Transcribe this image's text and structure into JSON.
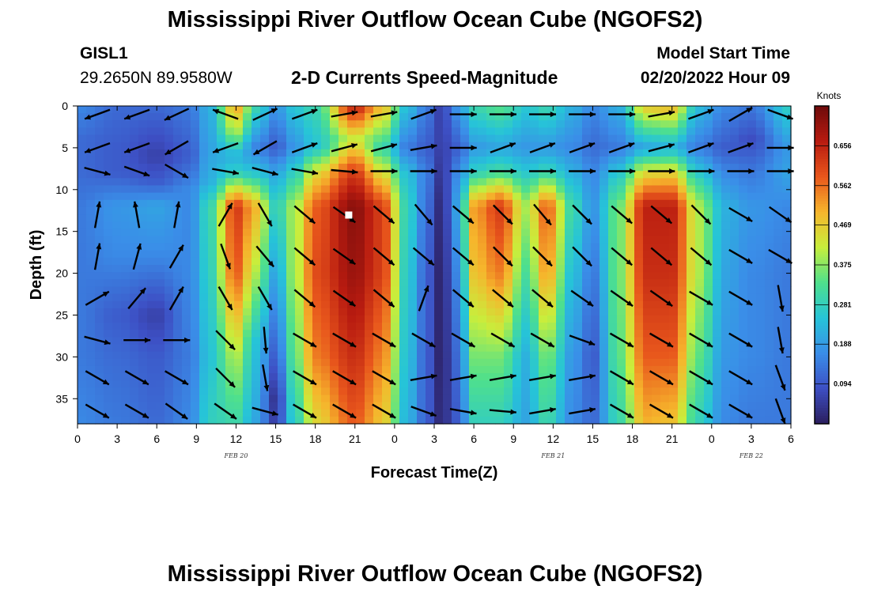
{
  "header": {
    "title": "Mississippi River Outflow Ocean Cube (NGOFS2)",
    "station": "GISL1",
    "coords": "29.2650N  89.9580W",
    "subtitle": "2-D Currents Speed-Magnitude",
    "model_start_label": "Model Start Time",
    "model_start_value": "02/20/2022 Hour 09"
  },
  "footer": {
    "title": "Mississippi River Outflow Ocean Cube (NGOFS2)"
  },
  "chart_data": {
    "type": "heatmap",
    "xlabel": "Forecast Time(Z)",
    "ylabel": "Depth (ft)",
    "x_ticks": [
      "0",
      "3",
      "6",
      "9",
      "12",
      "15",
      "18",
      "21",
      "0",
      "3",
      "6",
      "9",
      "12",
      "15",
      "18",
      "21",
      "0",
      "3",
      "6"
    ],
    "date_labels": [
      {
        "text": "FEB 20",
        "hour_index": 12
      },
      {
        "text": "FEB 21",
        "hour_index": 36
      },
      {
        "text": "FEB 22",
        "hour_index": 51
      }
    ],
    "x_range_hours": [
      0,
      54
    ],
    "y_ticks": [
      0,
      5,
      10,
      15,
      20,
      25,
      30,
      35
    ],
    "y_range": [
      0,
      38
    ],
    "colorbar": {
      "unit": "Knots",
      "ticks": [
        0.094,
        0.188,
        0.281,
        0.375,
        0.469,
        0.562,
        0.656
      ],
      "min": 0.0,
      "max": 0.75
    },
    "colors": [
      "#2b1e5e",
      "#3d4fc4",
      "#3a8ee8",
      "#26c4d8",
      "#4fe08c",
      "#c8ee3c",
      "#f6b52c",
      "#e8561c",
      "#b81b10",
      "#6e0b0b"
    ],
    "columns": [
      {
        "hour": 0,
        "profile": [
          [
            0,
            0.16
          ],
          [
            4,
            0.12
          ],
          [
            8,
            0.12
          ],
          [
            12,
            0.14
          ],
          [
            20,
            0.14
          ],
          [
            30,
            0.14
          ],
          [
            38,
            0.16
          ]
        ]
      },
      {
        "hour": 3,
        "profile": [
          [
            0,
            0.12
          ],
          [
            5,
            0.1
          ],
          [
            8,
            0.1
          ],
          [
            12,
            0.18
          ],
          [
            18,
            0.16
          ],
          [
            25,
            0.1
          ],
          [
            30,
            0.12
          ],
          [
            38,
            0.14
          ]
        ]
      },
      {
        "hour": 6,
        "profile": [
          [
            0,
            0.12
          ],
          [
            6,
            0.06
          ],
          [
            9,
            0.1
          ],
          [
            12,
            0.2
          ],
          [
            18,
            0.16
          ],
          [
            25,
            0.06
          ],
          [
            30,
            0.1
          ],
          [
            38,
            0.12
          ]
        ]
      },
      {
        "hour": 8.5,
        "profile": [
          [
            0,
            0.14
          ],
          [
            6,
            0.1
          ],
          [
            10,
            0.16
          ],
          [
            20,
            0.16
          ],
          [
            30,
            0.14
          ],
          [
            38,
            0.16
          ]
        ]
      },
      {
        "hour": 10,
        "profile": [
          [
            0,
            0.22
          ],
          [
            5,
            0.2
          ],
          [
            9,
            0.22
          ],
          [
            12,
            0.3
          ],
          [
            20,
            0.28
          ],
          [
            30,
            0.25
          ],
          [
            38,
            0.28
          ]
        ]
      },
      {
        "hour": 12,
        "profile": [
          [
            0,
            0.52
          ],
          [
            3,
            0.4
          ],
          [
            6,
            0.22
          ],
          [
            8,
            0.28
          ],
          [
            12,
            0.62
          ],
          [
            20,
            0.58
          ],
          [
            30,
            0.4
          ],
          [
            38,
            0.3
          ]
        ]
      },
      {
        "hour": 13.5,
        "profile": [
          [
            0,
            0.3
          ],
          [
            5,
            0.15
          ],
          [
            8,
            0.25
          ],
          [
            12,
            0.5
          ],
          [
            20,
            0.4
          ],
          [
            28,
            0.25
          ],
          [
            38,
            0.2
          ]
        ]
      },
      {
        "hour": 15,
        "profile": [
          [
            0,
            0.18
          ],
          [
            5,
            0.1
          ],
          [
            8,
            0.2
          ],
          [
            12,
            0.28
          ],
          [
            20,
            0.2
          ],
          [
            30,
            0.1
          ],
          [
            35,
            0.04
          ],
          [
            38,
            0.06
          ]
        ]
      },
      {
        "hour": 16.5,
        "profile": [
          [
            0,
            0.26
          ],
          [
            5,
            0.18
          ],
          [
            8,
            0.28
          ],
          [
            12,
            0.4
          ],
          [
            20,
            0.4
          ],
          [
            30,
            0.35
          ],
          [
            38,
            0.28
          ]
        ]
      },
      {
        "hour": 18,
        "profile": [
          [
            0,
            0.3
          ],
          [
            5,
            0.25
          ],
          [
            8,
            0.45
          ],
          [
            12,
            0.58
          ],
          [
            20,
            0.6
          ],
          [
            30,
            0.55
          ],
          [
            38,
            0.45
          ]
        ]
      },
      {
        "hour": 21,
        "profile": [
          [
            0,
            0.66
          ],
          [
            4,
            0.42
          ],
          [
            8,
            0.62
          ],
          [
            12,
            0.72
          ],
          [
            20,
            0.7
          ],
          [
            30,
            0.64
          ],
          [
            38,
            0.58
          ]
        ]
      },
      {
        "hour": 23,
        "profile": [
          [
            0,
            0.5
          ],
          [
            5,
            0.3
          ],
          [
            8,
            0.45
          ],
          [
            12,
            0.62
          ],
          [
            20,
            0.62
          ],
          [
            30,
            0.55
          ],
          [
            38,
            0.48
          ]
        ]
      },
      {
        "hour": 25,
        "profile": [
          [
            0,
            0.24
          ],
          [
            5,
            0.14
          ],
          [
            8,
            0.24
          ],
          [
            12,
            0.28
          ],
          [
            20,
            0.26
          ],
          [
            30,
            0.24
          ],
          [
            38,
            0.22
          ]
        ]
      },
      {
        "hour": 26.5,
        "profile": [
          [
            0,
            0.14
          ],
          [
            5,
            0.1
          ],
          [
            8,
            0.14
          ],
          [
            12,
            0.12
          ],
          [
            20,
            0.1
          ],
          [
            30,
            0.1
          ],
          [
            38,
            0.1
          ]
        ]
      },
      {
        "hour": 27.5,
        "profile": [
          [
            0,
            0.06
          ],
          [
            5,
            0.06
          ],
          [
            8,
            0.04
          ],
          [
            12,
            0.02
          ],
          [
            20,
            0.01
          ],
          [
            30,
            0.01
          ],
          [
            38,
            0.02
          ]
        ]
      },
      {
        "hour": 28.8,
        "profile": [
          [
            0,
            0.18
          ],
          [
            5,
            0.1
          ],
          [
            8,
            0.16
          ],
          [
            12,
            0.2
          ],
          [
            20,
            0.16
          ],
          [
            30,
            0.12
          ],
          [
            38,
            0.1
          ]
        ]
      },
      {
        "hour": 30,
        "profile": [
          [
            0,
            0.3
          ],
          [
            5,
            0.18
          ],
          [
            8,
            0.28
          ],
          [
            12,
            0.52
          ],
          [
            20,
            0.48
          ],
          [
            30,
            0.36
          ],
          [
            38,
            0.28
          ]
        ]
      },
      {
        "hour": 32,
        "profile": [
          [
            0,
            0.34
          ],
          [
            5,
            0.2
          ],
          [
            8,
            0.32
          ],
          [
            12,
            0.62
          ],
          [
            20,
            0.55
          ],
          [
            30,
            0.36
          ],
          [
            38,
            0.28
          ]
        ]
      },
      {
        "hour": 34,
        "profile": [
          [
            0,
            0.26
          ],
          [
            5,
            0.18
          ],
          [
            8,
            0.26
          ],
          [
            12,
            0.4
          ],
          [
            20,
            0.32
          ],
          [
            30,
            0.22
          ],
          [
            38,
            0.2
          ]
        ]
      },
      {
        "hour": 35.5,
        "profile": [
          [
            0,
            0.3
          ],
          [
            5,
            0.18
          ],
          [
            8,
            0.3
          ],
          [
            12,
            0.58
          ],
          [
            20,
            0.52
          ],
          [
            30,
            0.36
          ],
          [
            38,
            0.3
          ]
        ]
      },
      {
        "hour": 37.5,
        "profile": [
          [
            0,
            0.22
          ],
          [
            5,
            0.16
          ],
          [
            8,
            0.22
          ],
          [
            12,
            0.3
          ],
          [
            20,
            0.24
          ],
          [
            30,
            0.18
          ],
          [
            38,
            0.16
          ]
        ]
      },
      {
        "hour": 39,
        "profile": [
          [
            0,
            0.16
          ],
          [
            5,
            0.12
          ],
          [
            8,
            0.16
          ],
          [
            12,
            0.18
          ],
          [
            20,
            0.14
          ],
          [
            30,
            0.1
          ],
          [
            38,
            0.12
          ]
        ]
      },
      {
        "hour": 41,
        "profile": [
          [
            0,
            0.22
          ],
          [
            5,
            0.14
          ],
          [
            8,
            0.26
          ],
          [
            12,
            0.36
          ],
          [
            20,
            0.36
          ],
          [
            30,
            0.34
          ],
          [
            38,
            0.3
          ]
        ]
      },
      {
        "hour": 43,
        "profile": [
          [
            0,
            0.48
          ],
          [
            5,
            0.2
          ],
          [
            8,
            0.45
          ],
          [
            12,
            0.66
          ],
          [
            20,
            0.64
          ],
          [
            30,
            0.58
          ],
          [
            38,
            0.5
          ]
        ]
      },
      {
        "hour": 45,
        "profile": [
          [
            0,
            0.5
          ],
          [
            5,
            0.22
          ],
          [
            8,
            0.46
          ],
          [
            12,
            0.66
          ],
          [
            20,
            0.64
          ],
          [
            30,
            0.58
          ],
          [
            38,
            0.48
          ]
        ]
      },
      {
        "hour": 47,
        "profile": [
          [
            0,
            0.24
          ],
          [
            5,
            0.14
          ],
          [
            8,
            0.26
          ],
          [
            12,
            0.4
          ],
          [
            20,
            0.4
          ],
          [
            30,
            0.34
          ],
          [
            38,
            0.28
          ]
        ]
      },
      {
        "hour": 49,
        "profile": [
          [
            0,
            0.16
          ],
          [
            5,
            0.1
          ],
          [
            8,
            0.16
          ],
          [
            12,
            0.22
          ],
          [
            20,
            0.2
          ],
          [
            30,
            0.18
          ],
          [
            38,
            0.16
          ]
        ]
      },
      {
        "hour": 51,
        "profile": [
          [
            0,
            0.14
          ],
          [
            4,
            0.08
          ],
          [
            8,
            0.14
          ],
          [
            12,
            0.18
          ],
          [
            20,
            0.16
          ],
          [
            30,
            0.16
          ],
          [
            38,
            0.14
          ]
        ]
      },
      {
        "hour": 54,
        "profile": [
          [
            0,
            0.28
          ],
          [
            5,
            0.18
          ],
          [
            8,
            0.2
          ],
          [
            12,
            0.16
          ],
          [
            20,
            0.14
          ],
          [
            30,
            0.14
          ],
          [
            38,
            0.14
          ]
        ]
      }
    ],
    "vectors": {
      "hours": [
        1.5,
        4.5,
        7.5,
        11.2,
        14.2,
        17.2,
        20.2,
        23.2,
        26.2,
        29.2,
        32.2,
        35.2,
        38.2,
        41.2,
        44.2,
        47.2,
        50.2,
        53.2
      ],
      "depths": [
        1,
        5,
        7.8,
        13,
        18,
        23,
        28,
        32.5,
        36.5
      ],
      "dir_deg_by_depth": [
        [
          200,
          200,
          205,
          160,
          25,
          20,
          10,
          10,
          20,
          0,
          0,
          0,
          0,
          0,
          10,
          20,
          30,
          -20
        ],
        [
          200,
          200,
          210,
          200,
          210,
          20,
          15,
          15,
          10,
          0,
          20,
          20,
          20,
          20,
          15,
          20,
          20,
          0
        ],
        [
          -15,
          -20,
          -30,
          -10,
          -15,
          -10,
          -5,
          0,
          0,
          0,
          0,
          0,
          0,
          0,
          0,
          0,
          0,
          0
        ],
        [
          80,
          100,
          80,
          60,
          -60,
          -40,
          -35,
          -40,
          -50,
          -40,
          -45,
          -50,
          -45,
          -40,
          -40,
          -45,
          -30,
          -35
        ],
        [
          80,
          75,
          60,
          -70,
          -50,
          -40,
          -35,
          -40,
          -40,
          -40,
          -45,
          -45,
          -45,
          -40,
          -40,
          -40,
          -30,
          -30
        ],
        [
          30,
          50,
          60,
          -60,
          -60,
          -40,
          -35,
          -40,
          70,
          -40,
          -40,
          -40,
          -35,
          -35,
          -35,
          -30,
          -30,
          -80
        ],
        [
          -15,
          0,
          0,
          -45,
          -85,
          -30,
          -30,
          -30,
          -30,
          -30,
          -30,
          -30,
          -20,
          -30,
          -30,
          -30,
          -30,
          -80
        ],
        [
          -30,
          -30,
          -30,
          -45,
          -80,
          -30,
          -30,
          -30,
          10,
          10,
          10,
          10,
          10,
          -30,
          -30,
          -30,
          -30,
          -70
        ],
        [
          -30,
          -30,
          -35,
          -35,
          -15,
          -30,
          -30,
          -30,
          -20,
          -10,
          -5,
          10,
          10,
          -30,
          -30,
          -30,
          -30,
          -70
        ]
      ]
    },
    "marker": {
      "hour": 20.5,
      "depth": 13
    }
  }
}
